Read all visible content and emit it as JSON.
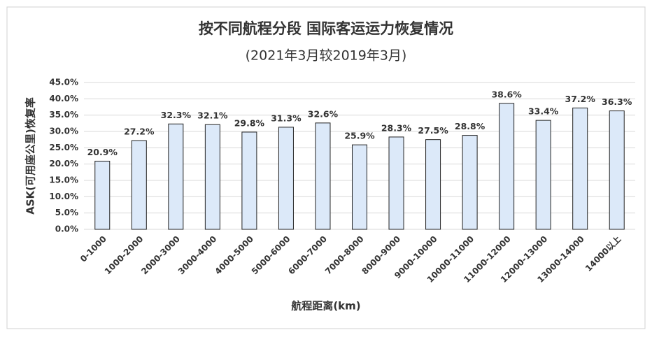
{
  "chart_data": {
    "type": "bar",
    "title": "按不同航程分段 国际客运运力恢复情况",
    "subtitle": "(2021年3月较2019年3月)",
    "x_label": "航程距离(km)",
    "y_label": "ASK(可用座公里)恢复率",
    "categories": [
      "0-1000",
      "1000-2000",
      "2000-3000",
      "3000-4000",
      "4000-5000",
      "5000-6000",
      "6000-7000",
      "7000-8000",
      "8000-9000",
      "9000-10000",
      "10000-11000",
      "11000-12000",
      "12000-13000",
      "13000-14000",
      "14000以上"
    ],
    "values": [
      20.9,
      27.2,
      32.3,
      32.1,
      29.8,
      31.3,
      32.6,
      25.9,
      28.3,
      27.5,
      28.8,
      38.6,
      33.4,
      37.2,
      36.3
    ],
    "value_labels": [
      "20.9%",
      "27.2%",
      "32.3%",
      "32.1%",
      "29.8%",
      "31.3%",
      "32.6%",
      "25.9%",
      "28.3%",
      "27.5%",
      "28.8%",
      "38.6%",
      "33.4%",
      "37.2%",
      "36.3%"
    ],
    "color": "#dce9f9",
    "ylim": [
      0,
      45
    ],
    "yticks": [
      {
        "value": 0,
        "label": "0.0%"
      },
      {
        "value": 5,
        "label": "5.0%"
      },
      {
        "value": 10,
        "label": "10.0%"
      },
      {
        "value": 15,
        "label": "15.0%"
      },
      {
        "value": 20,
        "label": "20.0%"
      },
      {
        "value": 25,
        "label": "25.0%"
      },
      {
        "value": 30,
        "label": "30.0%"
      },
      {
        "value": 35,
        "label": "35.0%"
      },
      {
        "value": 40,
        "label": "40.0%"
      },
      {
        "value": 45,
        "label": "45.0%"
      }
    ],
    "grid": true
  }
}
